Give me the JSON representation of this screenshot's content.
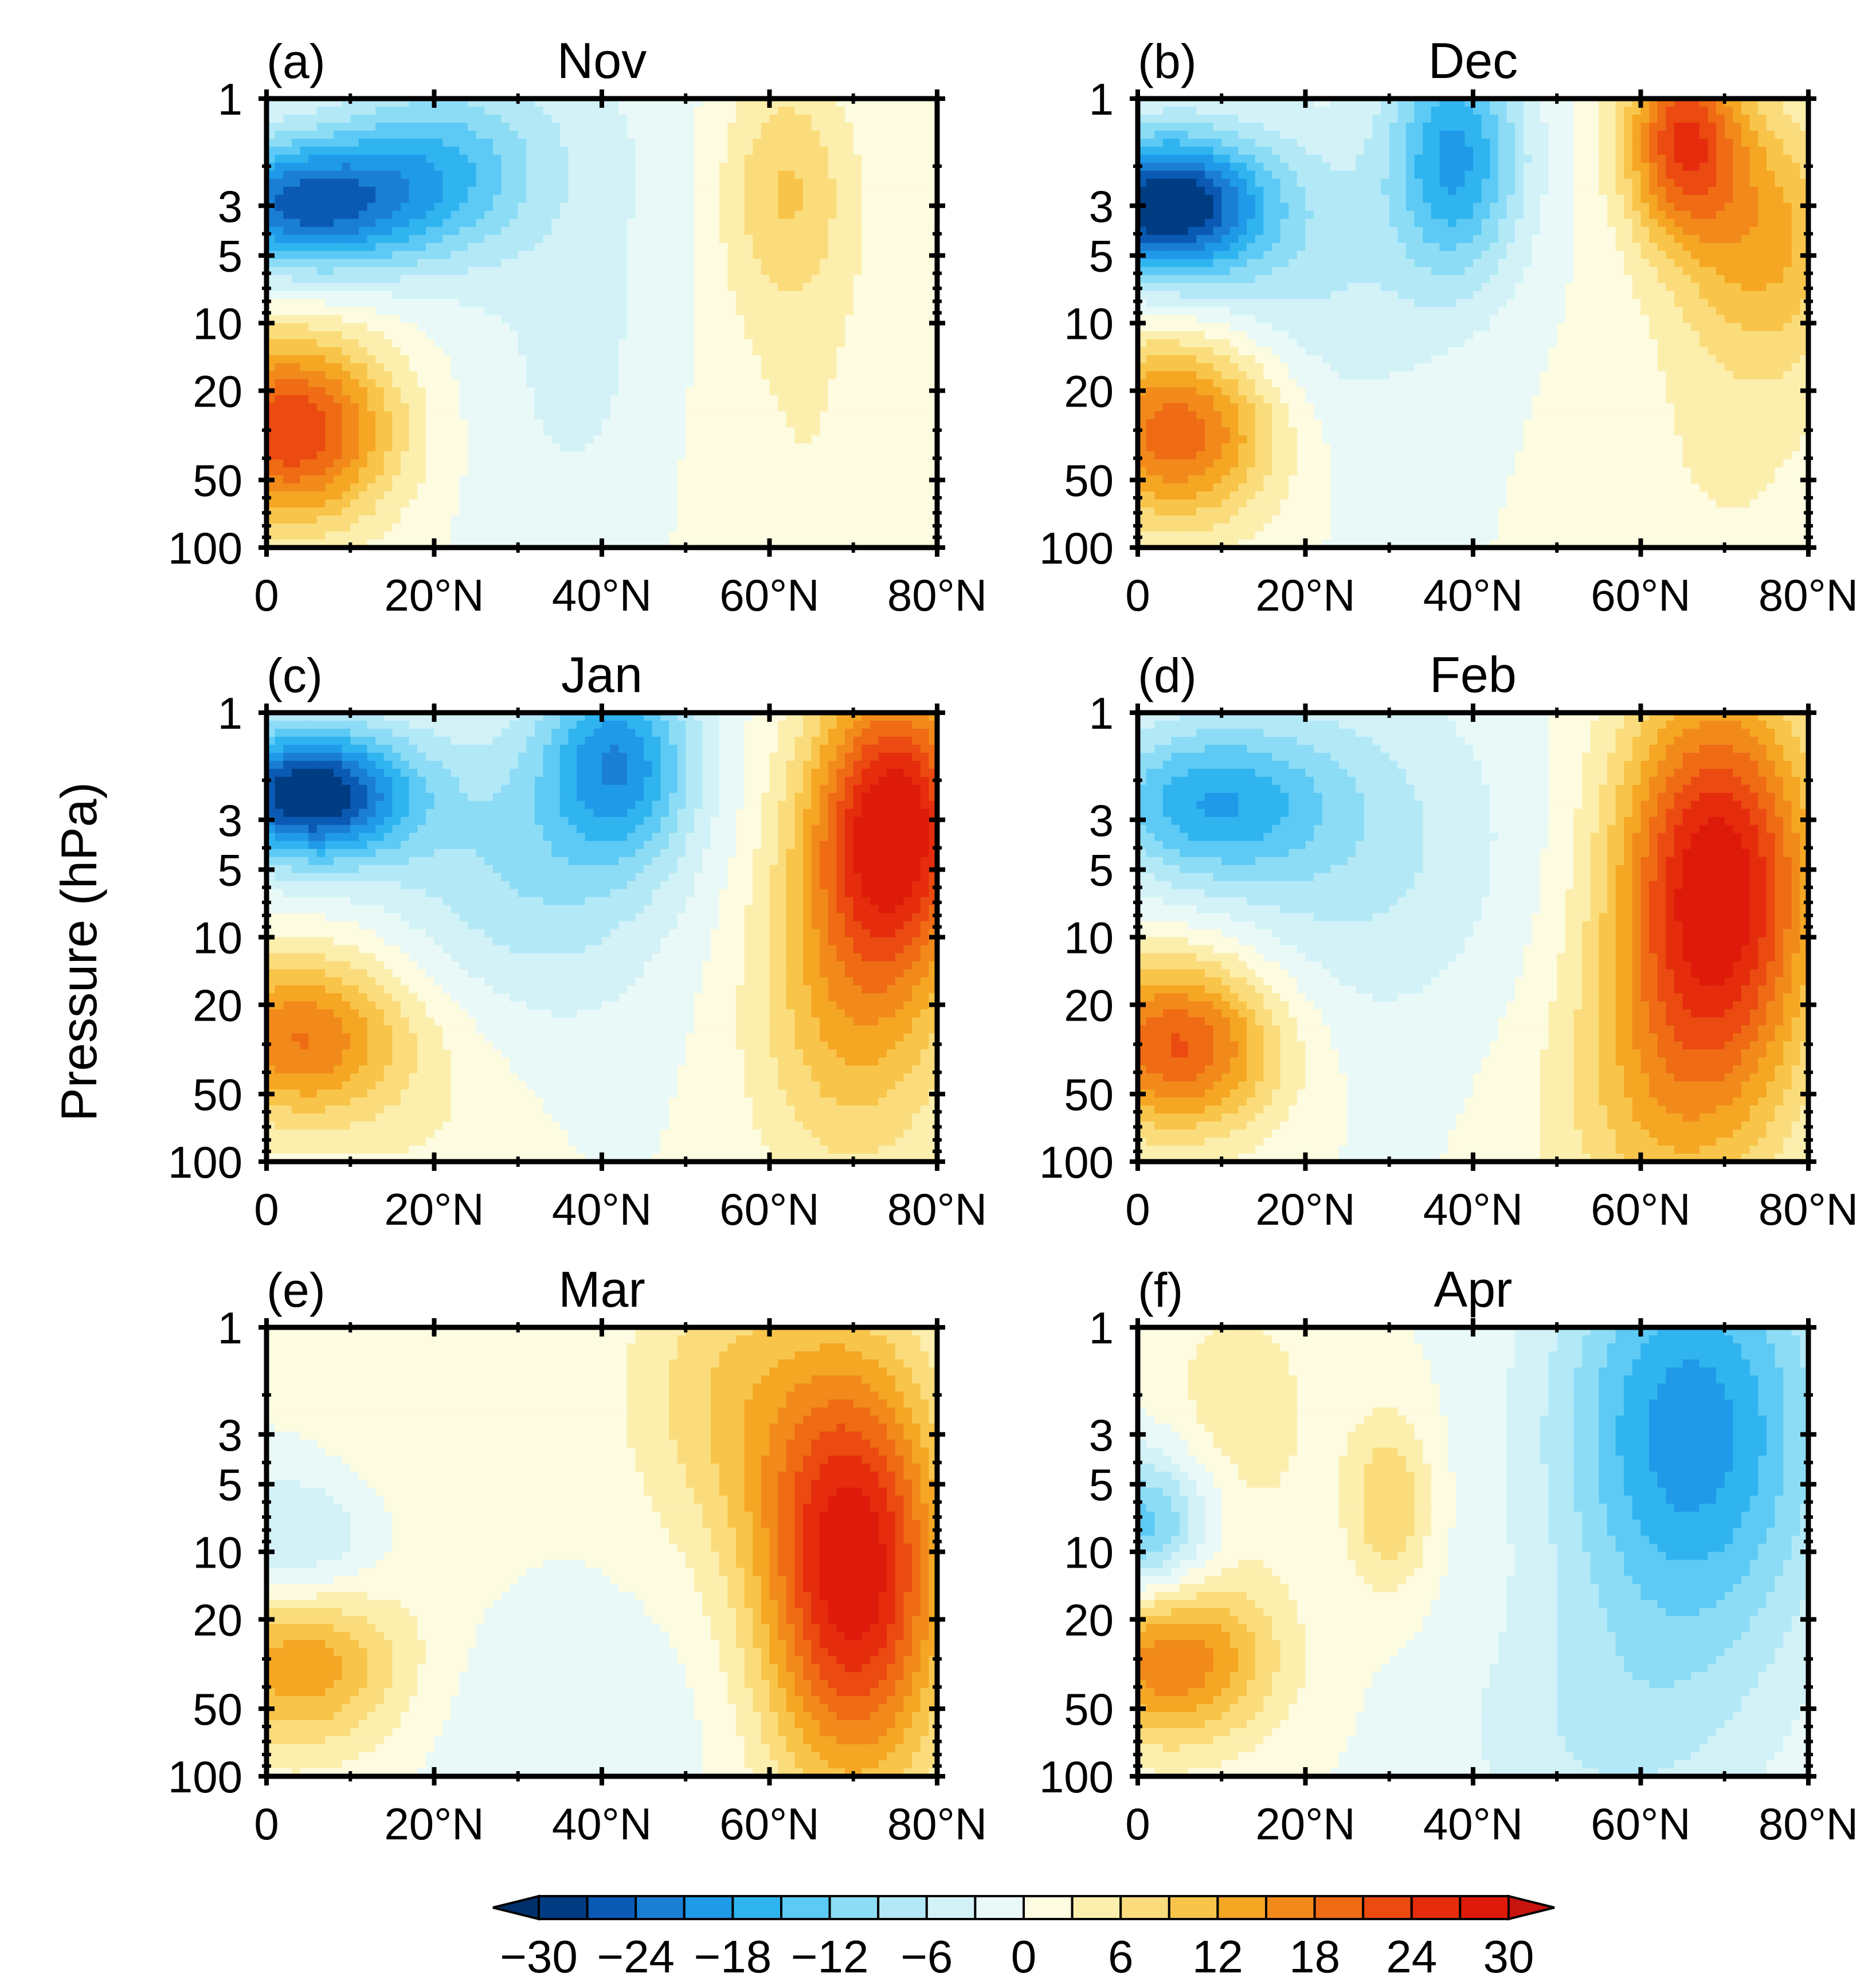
{
  "figure": {
    "ylabel": "Pressure (hPa)"
  },
  "chart_data": [
    {
      "type": "heatmap",
      "panel": "(a)",
      "title": "Nov",
      "x_ticks": [
        "0",
        "20°N",
        "40°N",
        "60°N",
        "80°N"
      ],
      "y_ticks": [
        "1",
        "3",
        "5",
        "10",
        "20",
        "50",
        "100"
      ],
      "xlim": [
        0,
        80
      ],
      "ylim_hPa": [
        100,
        1
      ],
      "y_scale": "log",
      "features": [
        {
          "lat": 4,
          "p": 3,
          "value": -24,
          "w": 13,
          "h": 0.3
        },
        {
          "lat": 20,
          "p": 2.2,
          "value": -12,
          "w": 12,
          "h": 0.4
        },
        {
          "lat": 28,
          "p": 1.3,
          "value": -3,
          "w": 20,
          "h": 0.5
        },
        {
          "lat": 3,
          "p": 30,
          "value": 24,
          "w": 12,
          "h": 0.42
        },
        {
          "lat": 62,
          "p": 2.5,
          "value": 9,
          "w": 8,
          "h": 0.55
        },
        {
          "lat": 63,
          "p": 35,
          "value": 3,
          "w": 18,
          "h": 0.9
        },
        {
          "lat": 38,
          "p": 15,
          "value": -4,
          "w": 14,
          "h": 1.0
        }
      ]
    },
    {
      "type": "heatmap",
      "panel": "(b)",
      "title": "Dec",
      "x_ticks": [
        "0",
        "20°N",
        "40°N",
        "60°N",
        "80°N"
      ],
      "y_ticks": [
        "1",
        "3",
        "5",
        "10",
        "20",
        "50",
        "100"
      ],
      "xlim": [
        0,
        80
      ],
      "ylim_hPa": [
        100,
        1
      ],
      "y_scale": "log",
      "features": [
        {
          "lat": 3,
          "p": 3,
          "value": -30,
          "w": 12,
          "h": 0.32
        },
        {
          "lat": 38,
          "p": 1.8,
          "value": -18,
          "w": 8,
          "h": 0.55
        },
        {
          "lat": 20,
          "p": 6,
          "value": -6,
          "w": 16,
          "h": 0.8
        },
        {
          "lat": 5,
          "p": 30,
          "value": 21,
          "w": 12,
          "h": 0.42
        },
        {
          "lat": 65,
          "p": 1.5,
          "value": 22,
          "w": 7,
          "h": 0.45
        },
        {
          "lat": 75,
          "p": 4,
          "value": 12,
          "w": 10,
          "h": 0.6
        },
        {
          "lat": 70,
          "p": 40,
          "value": 3,
          "w": 15,
          "h": 1.0
        }
      ]
    },
    {
      "type": "heatmap",
      "panel": "(c)",
      "title": "Jan",
      "x_ticks": [
        "0",
        "20°N",
        "40°N",
        "60°N",
        "80°N"
      ],
      "y_ticks": [
        "1",
        "3",
        "5",
        "10",
        "20",
        "50",
        "100"
      ],
      "xlim": [
        0,
        80
      ],
      "ylim_hPa": [
        100,
        1
      ],
      "y_scale": "log",
      "features": [
        {
          "lat": 5,
          "p": 2.3,
          "value": -30,
          "w": 12,
          "h": 0.3
        },
        {
          "lat": 42,
          "p": 1.6,
          "value": -18,
          "w": 9,
          "h": 0.45
        },
        {
          "lat": 30,
          "p": 5,
          "value": -9,
          "w": 18,
          "h": 0.7
        },
        {
          "lat": 4,
          "p": 28,
          "value": 18,
          "w": 12,
          "h": 0.38
        },
        {
          "lat": 75,
          "p": 3,
          "value": 28,
          "w": 10,
          "h": 0.65
        },
        {
          "lat": 70,
          "p": 20,
          "value": 12,
          "w": 12,
          "h": 0.8
        },
        {
          "lat": 20,
          "p": 40,
          "value": 3,
          "w": 12,
          "h": 0.7
        }
      ]
    },
    {
      "type": "heatmap",
      "panel": "(d)",
      "title": "Feb",
      "x_ticks": [
        "0",
        "20°N",
        "40°N",
        "60°N",
        "80°N"
      ],
      "y_ticks": [
        "1",
        "3",
        "5",
        "10",
        "20",
        "50",
        "100"
      ],
      "xlim": [
        0,
        80
      ],
      "ylim_hPa": [
        100,
        1
      ],
      "y_scale": "log",
      "features": [
        {
          "lat": 8,
          "p": 2.5,
          "value": -15,
          "w": 14,
          "h": 0.35
        },
        {
          "lat": 25,
          "p": 4,
          "value": -7,
          "w": 20,
          "h": 0.8
        },
        {
          "lat": 5,
          "p": 30,
          "value": 22,
          "w": 12,
          "h": 0.4
        },
        {
          "lat": 69,
          "p": 6,
          "value": 30,
          "w": 12,
          "h": 0.9
        },
        {
          "lat": 62,
          "p": 60,
          "value": 8,
          "w": 14,
          "h": 0.7
        }
      ]
    },
    {
      "type": "heatmap",
      "panel": "(e)",
      "title": "Mar",
      "x_ticks": [
        "0",
        "20°N",
        "40°N",
        "60°N",
        "80°N"
      ],
      "y_ticks": [
        "1",
        "3",
        "5",
        "10",
        "20",
        "50",
        "100"
      ],
      "xlim": [
        0,
        80
      ],
      "ylim_hPa": [
        100,
        1
      ],
      "y_scale": "log",
      "features": [
        {
          "lat": 4,
          "p": 10,
          "value": -9,
          "w": 10,
          "h": 0.35
        },
        {
          "lat": 36,
          "p": 70,
          "value": -3,
          "w": 16,
          "h": 0.6
        },
        {
          "lat": 4,
          "p": 30,
          "value": 15,
          "w": 12,
          "h": 0.4
        },
        {
          "lat": 70,
          "p": 12,
          "value": 30,
          "w": 11,
          "h": 0.95
        },
        {
          "lat": 55,
          "p": 2,
          "value": 8,
          "w": 12,
          "h": 0.7
        },
        {
          "lat": 18,
          "p": 2,
          "value": 3,
          "w": 14,
          "h": 0.8
        }
      ]
    },
    {
      "type": "heatmap",
      "panel": "(f)",
      "title": "Apr",
      "x_ticks": [
        "0",
        "20°N",
        "40°N",
        "60°N",
        "80°N"
      ],
      "y_ticks": [
        "1",
        "3",
        "5",
        "10",
        "20",
        "50",
        "100"
      ],
      "xlim": [
        0,
        80
      ],
      "ylim_hPa": [
        100,
        1
      ],
      "y_scale": "log",
      "features": [
        {
          "lat": 66,
          "p": 3,
          "value": -20,
          "w": 16,
          "h": 1.0
        },
        {
          "lat": 1,
          "p": 8,
          "value": -15,
          "w": 8,
          "h": 0.35
        },
        {
          "lat": 4,
          "p": 30,
          "value": 18,
          "w": 12,
          "h": 0.38
        },
        {
          "lat": 30,
          "p": 6,
          "value": 9,
          "w": 5,
          "h": 0.4
        },
        {
          "lat": 12,
          "p": 2.5,
          "value": 5,
          "w": 10,
          "h": 0.6
        },
        {
          "lat": 55,
          "p": 70,
          "value": -5,
          "w": 18,
          "h": 0.6
        }
      ]
    }
  ],
  "colorbar": {
    "labels": [
      "−30",
      "−24",
      "−18",
      "−12",
      "−6",
      "0",
      "6",
      "12",
      "18",
      "24",
      "30"
    ],
    "min": -30,
    "max": 30,
    "step": 3,
    "colors": [
      "#003c82",
      "#0a5ab4",
      "#1a7fd4",
      "#1f9ae8",
      "#2fb4f0",
      "#5ccaf5",
      "#8ddcf5",
      "#b3e9f7",
      "#d2f2f7",
      "#e9f9f8",
      "#fdfbe0",
      "#fcefae",
      "#fbdc7c",
      "#f8c54a",
      "#f5a623",
      "#f28a1b",
      "#ef6b14",
      "#eb4a10",
      "#e52c0c",
      "#de1a0a"
    ],
    "under_color": "#00306b",
    "over_color": "#c8140e"
  }
}
